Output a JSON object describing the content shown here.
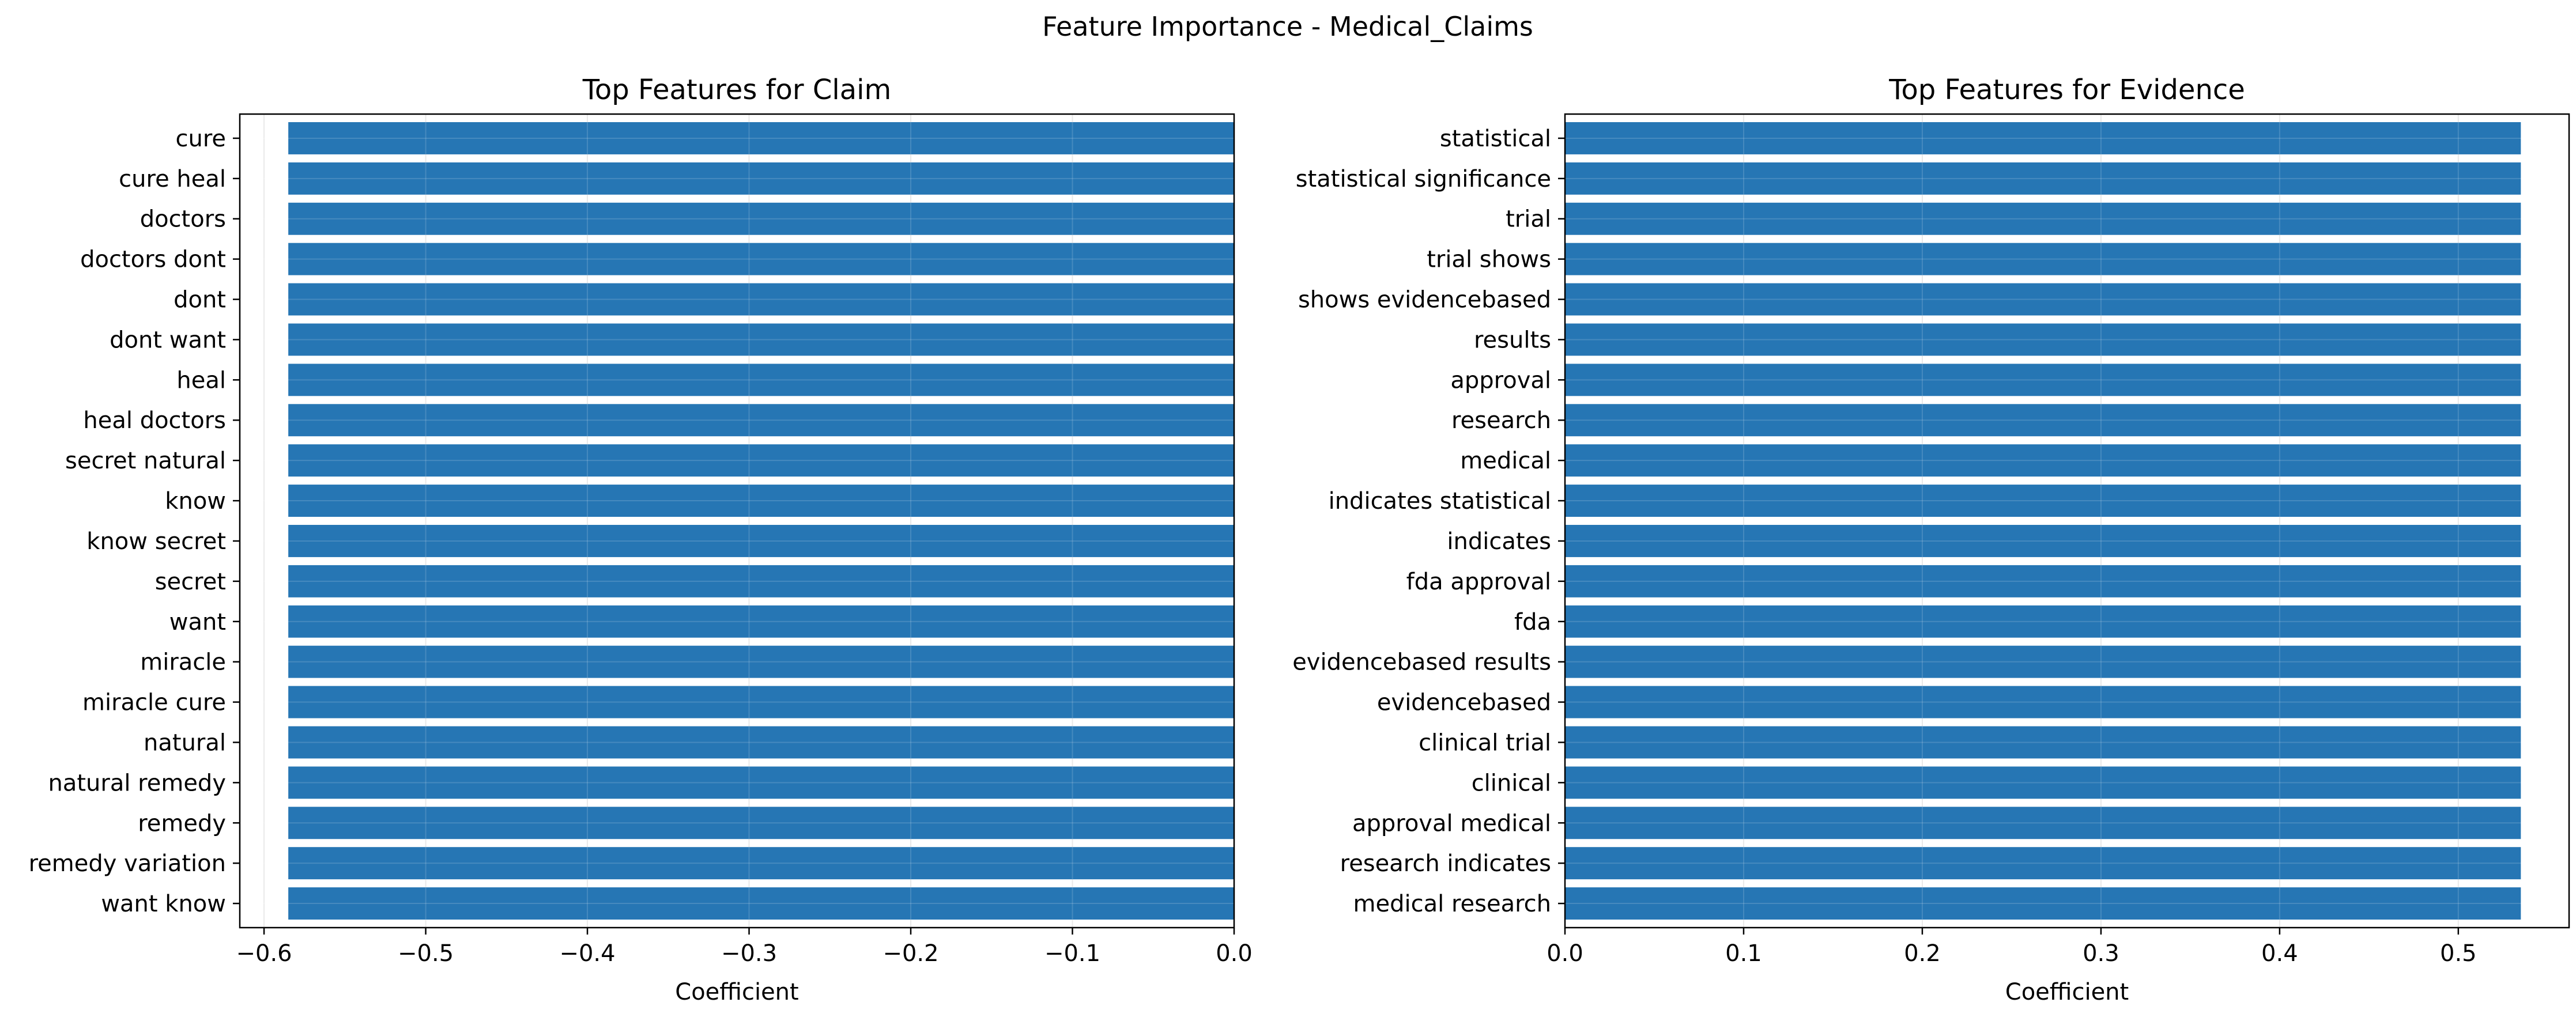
{
  "figure_title": "Feature Importance - Medical_Claims",
  "bar_color": "#2676b4",
  "chart_data": [
    {
      "type": "bar",
      "orientation": "horizontal",
      "title": "Top Features for Claim",
      "xlabel": "Coefficient",
      "ylabel": "",
      "xlim": [
        -0.615,
        0.0
      ],
      "xticks": [
        -0.6,
        -0.5,
        -0.4,
        -0.3,
        -0.2,
        -0.1,
        0.0
      ],
      "xtick_labels": [
        "−0.6",
        "−0.5",
        "−0.4",
        "−0.3",
        "−0.2",
        "−0.1",
        "0.0"
      ],
      "grid": true,
      "categories": [
        "cure",
        "cure heal",
        "doctors",
        "doctors dont",
        "dont",
        "dont want",
        "heal",
        "heal doctors",
        "secret natural",
        "know",
        "know secret",
        "secret",
        "want",
        "miracle",
        "miracle cure",
        "natural",
        "natural remedy",
        "remedy",
        "remedy variation",
        "want know"
      ],
      "values": [
        -0.585,
        -0.585,
        -0.585,
        -0.585,
        -0.585,
        -0.585,
        -0.585,
        -0.585,
        -0.585,
        -0.585,
        -0.585,
        -0.585,
        -0.585,
        -0.585,
        -0.585,
        -0.585,
        -0.585,
        -0.585,
        -0.585,
        -0.585
      ]
    },
    {
      "type": "bar",
      "orientation": "horizontal",
      "title": "Top Features for Evidence",
      "xlabel": "Coefficient",
      "ylabel": "",
      "xlim": [
        0.0,
        0.562
      ],
      "xticks": [
        0.0,
        0.1,
        0.2,
        0.3,
        0.4,
        0.5
      ],
      "xtick_labels": [
        "0.0",
        "0.1",
        "0.2",
        "0.3",
        "0.4",
        "0.5"
      ],
      "grid": true,
      "categories": [
        "statistical",
        "statistical significance",
        "trial",
        "trial shows",
        "shows evidencebased",
        "results",
        "approval",
        "research",
        "medical",
        "indicates statistical",
        "indicates",
        "fda approval",
        "fda",
        "evidencebased results",
        "evidencebased",
        "clinical trial",
        "clinical",
        "approval medical",
        "research indicates",
        "medical research"
      ],
      "values": [
        0.535,
        0.535,
        0.535,
        0.535,
        0.535,
        0.535,
        0.535,
        0.535,
        0.535,
        0.535,
        0.535,
        0.535,
        0.535,
        0.535,
        0.535,
        0.535,
        0.535,
        0.535,
        0.535,
        0.535
      ]
    }
  ]
}
